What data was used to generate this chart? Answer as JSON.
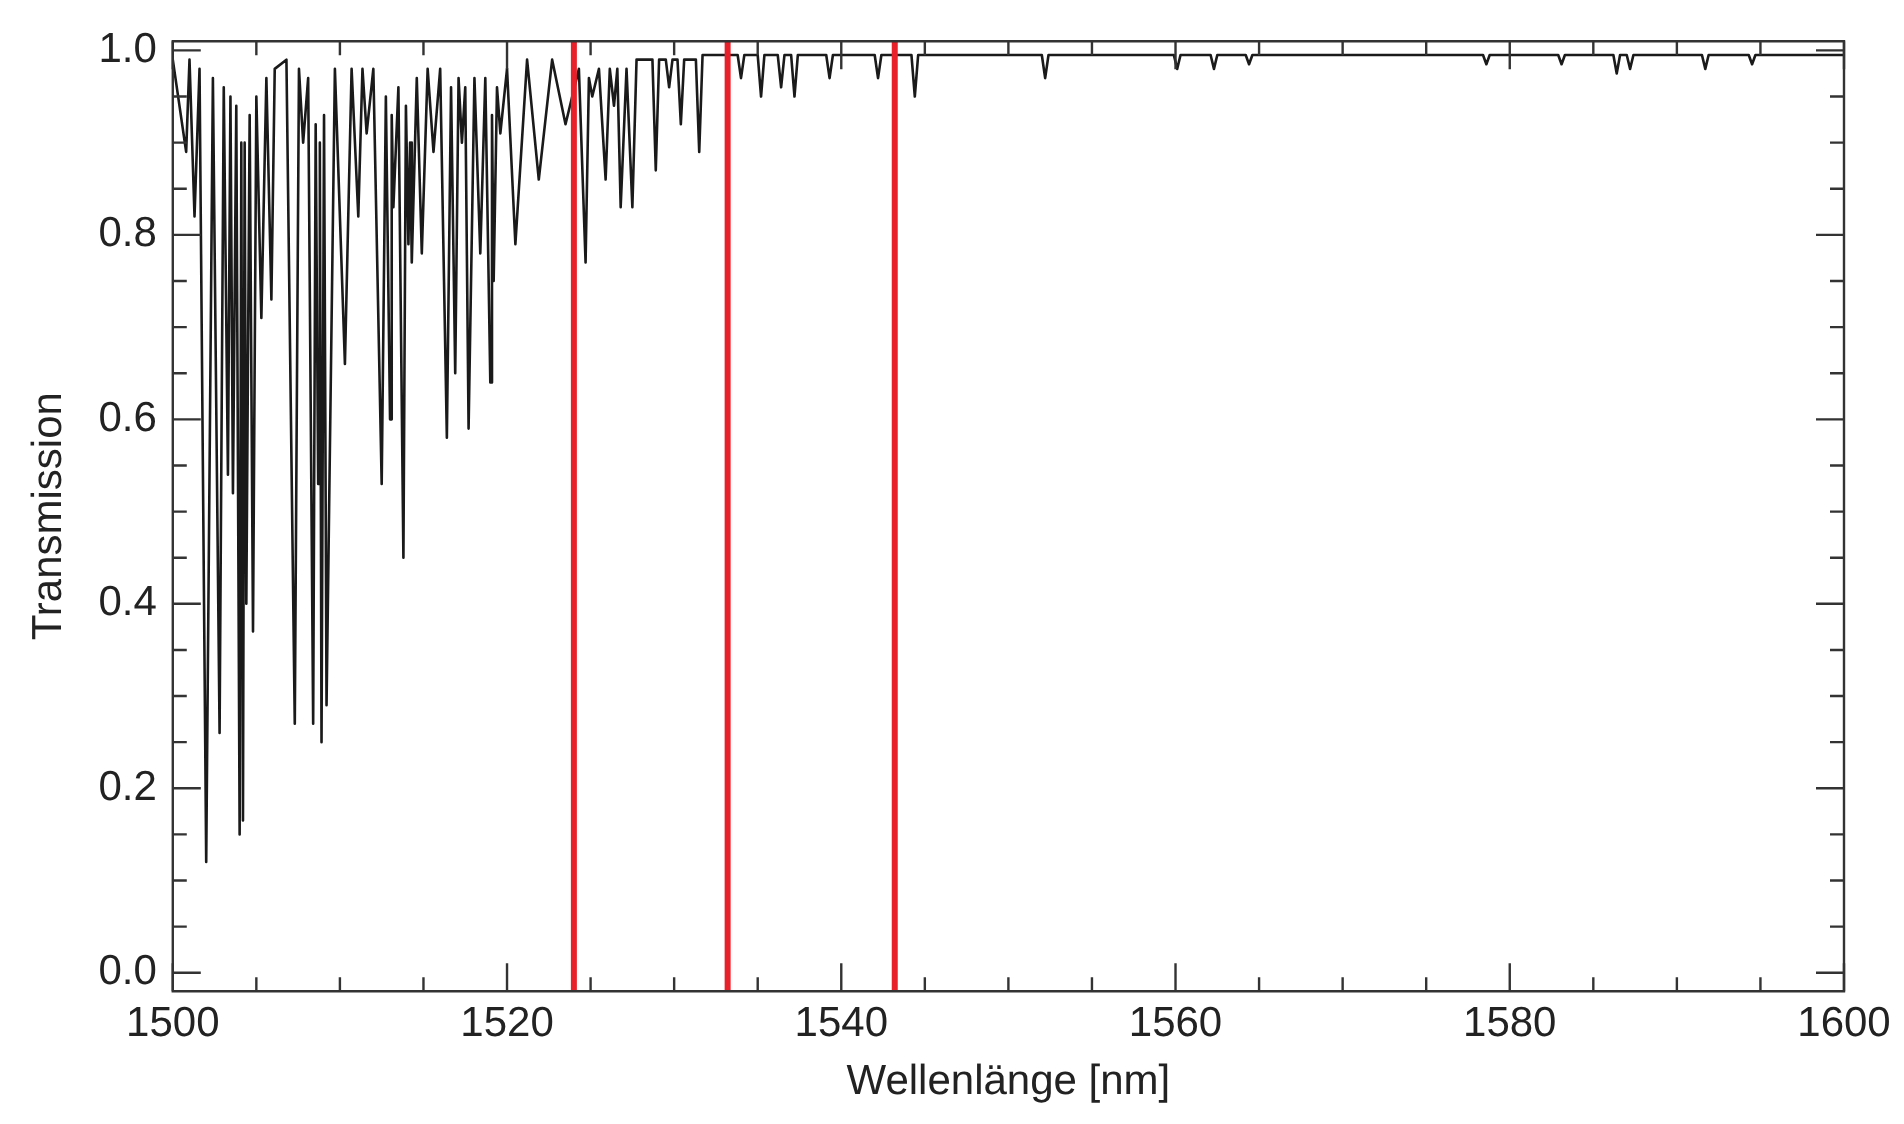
{
  "chart_data": {
    "type": "line",
    "xlabel": "Wellenlänge [nm]",
    "ylabel": "Transmission",
    "x": [
      1500.0,
      1500.8,
      1501.0,
      1501.3,
      1501.6,
      1502.0,
      1502.4,
      1502.8,
      1503.05,
      1503.3,
      1503.45,
      1503.6,
      1503.8,
      1504.0,
      1504.1,
      1504.2,
      1504.3,
      1504.4,
      1504.6,
      1504.8,
      1505.0,
      1505.3,
      1505.6,
      1505.9,
      1506.1,
      1506.8,
      1507.3,
      1507.55,
      1507.8,
      1508.1,
      1508.4,
      1508.55,
      1508.7,
      1508.8,
      1508.9,
      1509.05,
      1509.2,
      1509.7,
      1510.3,
      1510.7,
      1511.1,
      1511.35,
      1511.6,
      1512.0,
      1512.5,
      1512.75,
      1513.0,
      1513.1,
      1513.2,
      1513.5,
      1513.8,
      1513.95,
      1514.1,
      1514.2,
      1514.3,
      1514.6,
      1514.9,
      1515.25,
      1515.6,
      1516.0,
      1516.4,
      1516.65,
      1516.9,
      1517.1,
      1517.3,
      1517.5,
      1517.7,
      1518.05,
      1518.4,
      1518.7,
      1519.0,
      1519.1,
      1519.2,
      1519.4,
      1519.6,
      1520.0,
      1520.5,
      1521.2,
      1521.9,
      1522.7,
      1523.5,
      1524.3,
      1524.7,
      1524.9,
      1525.1,
      1525.5,
      1525.9,
      1526.15,
      1526.4,
      1526.6,
      1526.8,
      1527.15,
      1527.5,
      1527.75,
      1528.7,
      1528.9,
      1529.1,
      1529.5,
      1529.7,
      1529.9,
      1530.2,
      1530.4,
      1530.6,
      1531.3,
      1531.5,
      1531.7,
      1533.8,
      1534.0,
      1534.2,
      1535.0,
      1535.2,
      1535.4,
      1536.2,
      1536.4,
      1536.6,
      1537.0,
      1537.2,
      1537.4,
      1539.1,
      1539.3,
      1539.5,
      1542.0,
      1542.2,
      1542.4,
      1544.2,
      1544.4,
      1544.6,
      1552.0,
      1552.2,
      1552.4,
      1559.9,
      1560.1,
      1560.3,
      1562.1,
      1562.3,
      1562.5,
      1564.2,
      1564.4,
      1564.6,
      1578.4,
      1578.6,
      1578.8,
      1582.9,
      1583.1,
      1583.3,
      1586.2,
      1586.4,
      1586.6,
      1587.0,
      1587.2,
      1587.4,
      1591.5,
      1591.7,
      1591.9,
      1594.3,
      1594.5,
      1594.7,
      1600.0
    ],
    "series": [
      {
        "color": "#1a1a1a",
        "values": [
          0.99,
          0.89,
          0.99,
          0.82,
          0.98,
          0.12,
          0.97,
          0.26,
          0.96,
          0.54,
          0.95,
          0.52,
          0.94,
          0.15,
          0.9,
          0.165,
          0.9,
          0.4,
          0.93,
          0.37,
          0.95,
          0.71,
          0.97,
          0.73,
          0.98,
          0.99,
          0.27,
          0.98,
          0.9,
          0.97,
          0.27,
          0.92,
          0.53,
          0.9,
          0.25,
          0.93,
          0.29,
          0.98,
          0.66,
          0.98,
          0.82,
          0.98,
          0.91,
          0.98,
          0.53,
          0.95,
          0.6,
          0.93,
          0.83,
          0.96,
          0.45,
          0.94,
          0.79,
          0.9,
          0.77,
          0.97,
          0.78,
          0.98,
          0.89,
          0.98,
          0.58,
          0.96,
          0.65,
          0.97,
          0.9,
          0.96,
          0.59,
          0.97,
          0.78,
          0.97,
          0.64,
          0.93,
          0.75,
          0.96,
          0.91,
          0.98,
          0.79,
          0.99,
          0.86,
          0.99,
          0.92,
          0.98,
          0.77,
          0.97,
          0.95,
          0.98,
          0.86,
          0.98,
          0.94,
          0.98,
          0.83,
          0.98,
          0.83,
          0.99,
          0.99,
          0.87,
          0.99,
          0.99,
          0.96,
          0.99,
          0.99,
          0.92,
          0.99,
          0.99,
          0.89,
          0.995,
          0.995,
          0.97,
          0.995,
          0.995,
          0.95,
          0.995,
          0.995,
          0.96,
          0.995,
          0.995,
          0.95,
          0.995,
          0.995,
          0.97,
          0.995,
          0.995,
          0.97,
          0.995,
          0.995,
          0.95,
          0.995,
          0.995,
          0.97,
          0.995,
          0.995,
          0.98,
          0.995,
          0.995,
          0.98,
          0.995,
          0.995,
          0.985,
          0.995,
          0.995,
          0.985,
          0.995,
          0.995,
          0.985,
          0.995,
          0.995,
          0.975,
          0.995,
          0.995,
          0.98,
          0.995,
          0.995,
          0.98,
          0.995,
          0.995,
          0.985,
          0.995,
          0.995
        ]
      }
    ],
    "xlim": [
      1500,
      1600
    ],
    "xticks": [
      1500,
      {
        "value": 1505,
        "label": null
      },
      {
        "value": 1510,
        "label": null
      },
      {
        "value": 1515,
        "label": null
      },
      1520,
      {
        "value": 1525,
        "label": null
      },
      {
        "value": 1530,
        "label": null
      },
      {
        "value": 1535,
        "label": null
      },
      1540,
      {
        "value": 1545,
        "label": null
      },
      {
        "value": 1550,
        "label": null
      },
      {
        "value": 1555,
        "label": null
      },
      1560,
      {
        "value": 1565,
        "label": null
      },
      {
        "value": 1570,
        "label": null
      },
      {
        "value": 1575,
        "label": null
      },
      1580,
      {
        "value": 1585,
        "label": null
      },
      {
        "value": 1590,
        "label": null
      },
      {
        "value": 1595,
        "label": null
      },
      1600
    ],
    "ylim": [
      -0.02,
      1.01
    ],
    "yticks": [
      {
        "value": 0,
        "label": "0.0"
      },
      {
        "value": 0.05,
        "label": null
      },
      {
        "value": 0.1,
        "label": null
      },
      {
        "value": 0.15,
        "label": null
      },
      {
        "value": 0.2,
        "label": "0.2"
      },
      {
        "value": 0.25,
        "label": null
      },
      {
        "value": 0.3,
        "label": null
      },
      {
        "value": 0.35,
        "label": null
      },
      {
        "value": 0.4,
        "label": "0.4"
      },
      {
        "value": 0.45,
        "label": null
      },
      {
        "value": 0.5,
        "label": null
      },
      {
        "value": 0.55,
        "label": null
      },
      {
        "value": 0.6,
        "label": "0.6"
      },
      {
        "value": 0.65,
        "label": null
      },
      {
        "value": 0.7,
        "label": null
      },
      {
        "value": 0.75,
        "label": null
      },
      {
        "value": 0.8,
        "label": "0.8"
      },
      {
        "value": 0.85,
        "label": null
      },
      {
        "value": 0.9,
        "label": null
      },
      {
        "value": 0.95,
        "label": null
      },
      {
        "value": 1,
        "label": "1.0"
      }
    ],
    "ref_lines": [
      {
        "axis": "x",
        "value": 1524,
        "color": "#e8202a"
      },
      {
        "axis": "x",
        "value": 1533.2,
        "color": "#e8202a"
      },
      {
        "axis": "x",
        "value": 1543.2,
        "color": "#e8202a"
      }
    ],
    "grid": false,
    "legend": false,
    "marker": "none",
    "line_style": "solid"
  }
}
